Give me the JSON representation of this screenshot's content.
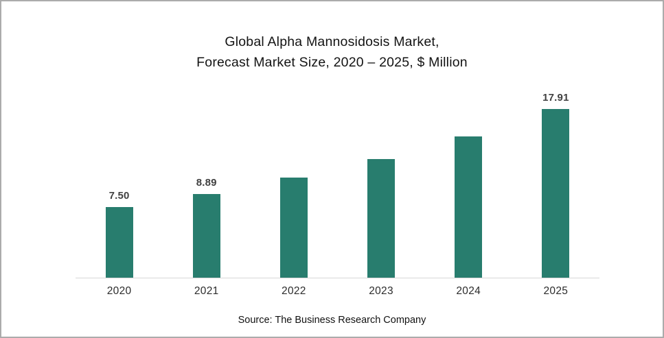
{
  "chart_data": {
    "type": "bar",
    "title_line1": "Global Alpha Mannosidosis Market,",
    "title_line2": "Forecast Market Size, 2020 – 2025, $ Million",
    "categories": [
      "2020",
      "2021",
      "2022",
      "2023",
      "2024",
      "2025"
    ],
    "values": [
      7.5,
      8.89,
      10.6,
      12.6,
      15.0,
      17.91
    ],
    "value_labels": [
      "7.50",
      "8.89",
      "",
      "",
      "",
      "17.91"
    ],
    "ylim": [
      0,
      20
    ],
    "bar_color": "#287d6e",
    "axis_line_color": "#d6d6d6",
    "legend": "none",
    "grid": false,
    "source": "Source: The Business Research Company"
  }
}
